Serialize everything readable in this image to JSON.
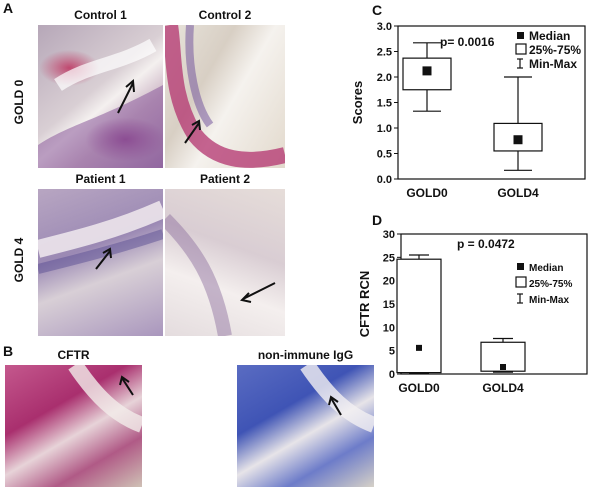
{
  "panels": {
    "A": "A",
    "B": "B",
    "C": "C",
    "D": "D"
  },
  "panel_a": {
    "row_labels": [
      "GOLD 0",
      "GOLD 4"
    ],
    "captions": [
      "Control 1",
      "Control 2",
      "Patient 1",
      "Patient 2"
    ]
  },
  "panel_b": {
    "captions": [
      "CFTR",
      "non-immune IgG"
    ]
  },
  "chart_data": [
    {
      "type": "box",
      "panel": "C",
      "categories": [
        "GOLD0",
        "GOLD4"
      ],
      "ylabel": "Scores",
      "ylim": [
        0,
        3.0
      ],
      "yticks": [
        "0.0",
        "0.5",
        "1.0",
        "1.5",
        "2.0",
        "2.5",
        "3.0"
      ],
      "annotation": "p= 0.0016",
      "legend": [
        "Median",
        "25%-75%",
        "Min-Max"
      ],
      "series": [
        {
          "category": "GOLD0",
          "min": 1.33,
          "q1": 1.75,
          "median": 2.12,
          "q3": 2.37,
          "max": 2.67
        },
        {
          "category": "GOLD4",
          "min": 0.17,
          "q1": 0.55,
          "median": 0.77,
          "q3": 1.09,
          "max": 2.0
        }
      ]
    },
    {
      "type": "box",
      "panel": "D",
      "categories": [
        "GOLD0",
        "GOLD4"
      ],
      "ylabel": "CFTR RCN",
      "ylim": [
        0,
        30
      ],
      "yticks": [
        "0",
        "5",
        "10",
        "15",
        "20",
        "25",
        "30"
      ],
      "annotation": "p = 0.0472",
      "legend": [
        "Median",
        "25%-75%",
        "Min-Max"
      ],
      "series": [
        {
          "category": "GOLD0",
          "min": 0.2,
          "q1": 0.3,
          "median": 5.6,
          "q3": 24.6,
          "max": 25.5
        },
        {
          "category": "GOLD4",
          "min": 0.4,
          "q1": 0.6,
          "median": 1.5,
          "q3": 6.8,
          "max": 7.6
        }
      ]
    }
  ]
}
